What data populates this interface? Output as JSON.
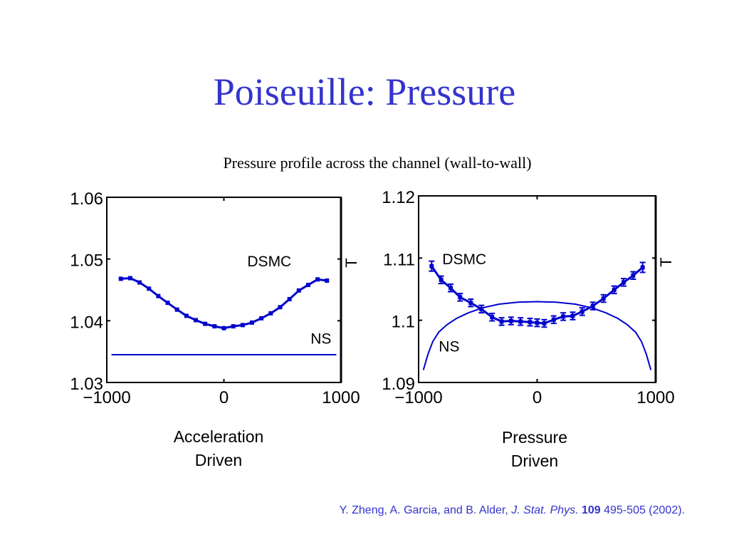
{
  "slide": {
    "title": "Poiseuille: Pressure",
    "subtitle": "Pressure profile across the channel (wall-to-wall)"
  },
  "captions": {
    "left_line1": "Acceleration",
    "left_line2": "Driven",
    "right_line1": "Pressure",
    "right_line2": "Driven"
  },
  "citation": {
    "authors": "Y. Zheng, A. Garcia, and B. Alder,",
    "journal": "J. Stat. Phys.",
    "volume": "109",
    "pages": "495-505 (2002)."
  },
  "chart_data": [
    {
      "type": "line",
      "xlim": [
        -1000,
        1000
      ],
      "ylim": [
        1.03,
        1.06
      ],
      "xticks": [
        -1000,
        0,
        1000
      ],
      "xtick_labels": [
        "−1000",
        "0",
        "1000"
      ],
      "yticks": [
        1.03,
        1.04,
        1.05,
        1.06
      ],
      "ytick_labels": [
        "1.03",
        "1.04",
        "1.05",
        "1.06"
      ],
      "right_label": "T",
      "color": "#0000cc",
      "series": [
        {
          "name": "DSMC",
          "markers": true,
          "x": [
            -880,
            -800,
            -720,
            -640,
            -560,
            -480,
            -400,
            -320,
            -240,
            -160,
            -80,
            0,
            80,
            160,
            240,
            320,
            400,
            480,
            560,
            640,
            720,
            800,
            880
          ],
          "y": [
            1.0468,
            1.0469,
            1.0462,
            1.0452,
            1.044,
            1.0429,
            1.0418,
            1.0408,
            1.0401,
            1.0395,
            1.0391,
            1.0388,
            1.0391,
            1.0393,
            1.0397,
            1.0404,
            1.0412,
            1.0422,
            1.0435,
            1.0449,
            1.0458,
            1.0467,
            1.0465
          ]
        },
        {
          "name": "NS",
          "markers": false,
          "x": [
            -960,
            960
          ],
          "y": [
            1.0345,
            1.0345
          ]
        }
      ],
      "annotations": [
        {
          "text": "DSMC",
          "x": 200,
          "y": 1.0488
        },
        {
          "text": "NS",
          "x": 740,
          "y": 1.0363
        }
      ]
    },
    {
      "type": "line",
      "xlim": [
        -1000,
        1000
      ],
      "ylim": [
        1.09,
        1.12
      ],
      "xticks": [
        -1000,
        0,
        1000
      ],
      "xtick_labels": [
        "−1000",
        "0",
        "1000"
      ],
      "yticks": [
        1.09,
        1.1,
        1.11,
        1.12
      ],
      "ytick_labels": [
        "1.09",
        "1.1",
        "1.11",
        "1.12"
      ],
      "right_label": "T",
      "color": "#0000cc",
      "series": [
        {
          "name": "DSMC",
          "markers": true,
          "error_bars": true,
          "x": [
            -890,
            -810,
            -730,
            -650,
            -560,
            -470,
            -380,
            -300,
            -220,
            -140,
            -60,
            0,
            60,
            140,
            220,
            300,
            380,
            470,
            560,
            650,
            730,
            810,
            890
          ],
          "y": [
            1.1087,
            1.1065,
            1.1052,
            1.1037,
            1.1028,
            1.1018,
            1.1005,
            1.0998,
            1.0999,
            1.0998,
            1.0997,
            1.0996,
            1.0995,
            1.1001,
            1.1006,
            1.1007,
            1.1014,
            1.1023,
            1.1035,
            1.1049,
            1.1061,
            1.1072,
            1.1085
          ],
          "errors": [
            0.0008,
            0.0006,
            0.0006,
            0.0006,
            0.0006,
            0.0006,
            0.0006,
            0.0006,
            0.0006,
            0.0006,
            0.0006,
            0.0006,
            0.0006,
            0.0006,
            0.0006,
            0.0006,
            0.0006,
            0.0006,
            0.0006,
            0.0006,
            0.0006,
            0.0006,
            0.0008
          ]
        },
        {
          "name": "NS",
          "markers": false,
          "x": [
            -960,
            -920,
            -880,
            -830,
            -760,
            -680,
            -580,
            -460,
            -320,
            -160,
            0,
            160,
            320,
            460,
            580,
            680,
            760,
            830,
            880,
            920,
            960
          ],
          "y": [
            1.092,
            1.0946,
            1.0966,
            1.0981,
            1.0993,
            1.1003,
            1.1012,
            1.102,
            1.1026,
            1.1029,
            1.103,
            1.1029,
            1.1026,
            1.102,
            1.1012,
            1.1003,
            1.0993,
            1.0981,
            1.0966,
            1.0946,
            1.092
          ]
        }
      ],
      "annotations": [
        {
          "text": "DSMC",
          "x": -800,
          "y": 1.109
        },
        {
          "text": "NS",
          "x": -830,
          "y": 1.095
        }
      ]
    }
  ]
}
